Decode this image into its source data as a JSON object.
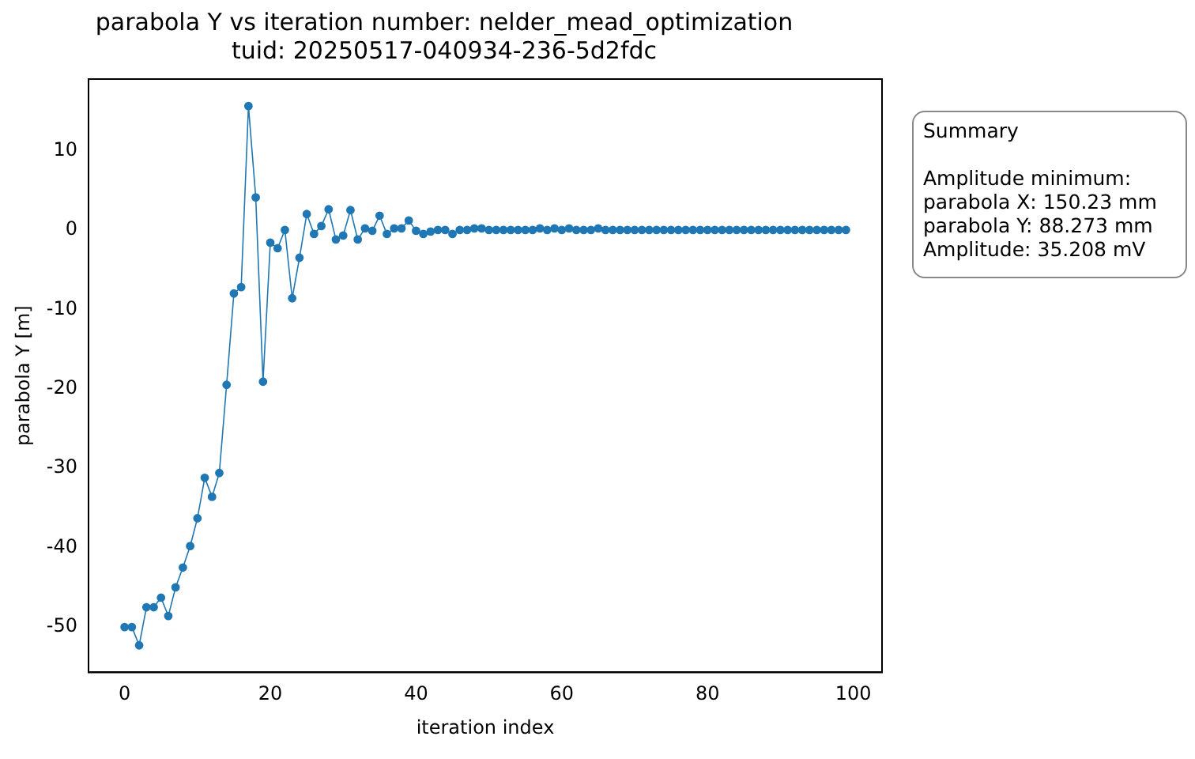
{
  "chart_data": {
    "type": "line",
    "title": "parabola Y vs iteration number: nelder_mead_optimization\ntuid: 20250517-040934-236-5d2fdc",
    "xlabel": "iteration index",
    "ylabel": "parabola Y [m]",
    "x": [
      0,
      1,
      2,
      3,
      4,
      5,
      6,
      7,
      8,
      9,
      10,
      11,
      12,
      13,
      14,
      15,
      16,
      17,
      18,
      19,
      20,
      21,
      22,
      23,
      24,
      25,
      26,
      27,
      28,
      29,
      30,
      31,
      32,
      33,
      34,
      35,
      36,
      37,
      38,
      39,
      40,
      41,
      42,
      43,
      44,
      45,
      46,
      47,
      48,
      49,
      50,
      51,
      52,
      53,
      54,
      55,
      56,
      57,
      58,
      59,
      60,
      61,
      62,
      63,
      64,
      65,
      66,
      67,
      68,
      69,
      70,
      71,
      72,
      73,
      74,
      75,
      76,
      77,
      78,
      79,
      80,
      81,
      82,
      83,
      84,
      85,
      86,
      87,
      88,
      89,
      90,
      91,
      92,
      93,
      94,
      95,
      96,
      97,
      98,
      99
    ],
    "series": [
      {
        "color": "#1f77b4",
        "values": [
          -50,
          -50,
          -52.3,
          -47.5,
          -47.5,
          -46.3,
          -48.6,
          -45,
          -42.5,
          -39.8,
          -36.3,
          -31.2,
          -33.6,
          -30.6,
          -19.5,
          -8,
          -7.2,
          15.6,
          4.1,
          -19.1,
          -1.6,
          -2.3,
          0,
          -8.6,
          -3.5,
          2,
          -0.5,
          0.5,
          2.6,
          -1.2,
          -0.7,
          2.5,
          -1.2,
          0.2,
          -0.1,
          1.8,
          -0.5,
          0.2,
          0.2,
          1.2,
          -0.1,
          -0.5,
          -0.2,
          0,
          0,
          -0.5,
          0,
          0,
          0.2,
          0.2,
          0,
          0,
          0,
          0,
          0,
          0,
          0,
          0.2,
          0,
          0.2,
          0,
          0.2,
          0,
          0,
          0,
          0.2,
          0,
          0,
          0,
          0,
          0,
          0,
          0,
          0,
          0,
          0,
          0,
          0,
          0,
          0,
          0,
          0,
          0,
          0,
          0,
          0,
          0,
          0,
          0,
          0,
          0,
          0,
          0,
          0,
          0,
          0,
          0,
          0,
          0,
          0
        ]
      }
    ],
    "xlim": [
      -4.95,
      103.95
    ],
    "xticks": [
      0,
      20,
      40,
      60,
      80,
      100
    ],
    "ylim": [
      -55.7,
      19
    ],
    "yticks": [
      -50,
      -40,
      -30,
      -20,
      -10,
      0,
      10
    ],
    "grid": false,
    "legend": false,
    "marker": "circle",
    "line_style": "solid",
    "annotations": [
      "Summary\n\nAmplitude minimum:\nparabola X: 150.23 mm\nparabola Y: 88.273 mm\nAmplitude: 35.208 mV"
    ]
  }
}
